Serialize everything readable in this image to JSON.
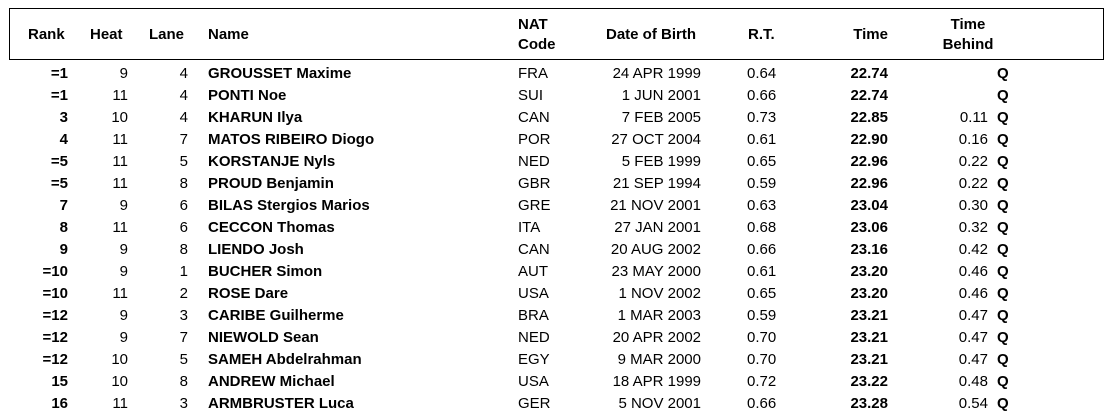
{
  "headers": {
    "rank": "Rank",
    "heat": "Heat",
    "lane": "Lane",
    "name": "Name",
    "nat_line1": "NAT",
    "nat_line2": "Code",
    "dob": "Date of Birth",
    "rt": "R.T.",
    "time": "Time",
    "behind_line1": "Time",
    "behind_line2": "Behind"
  },
  "rows": [
    {
      "rank": "=1",
      "heat": "9",
      "lane": "4",
      "name": "GROUSSET Maxime",
      "nat": "FRA",
      "dob": "24 APR 1999",
      "rt": "0.64",
      "time": "22.74",
      "behind": "",
      "q": "Q"
    },
    {
      "rank": "=1",
      "heat": "11",
      "lane": "4",
      "name": "PONTI Noe",
      "nat": "SUI",
      "dob": "1 JUN 2001",
      "rt": "0.66",
      "time": "22.74",
      "behind": "",
      "q": "Q"
    },
    {
      "rank": "3",
      "heat": "10",
      "lane": "4",
      "name": "KHARUN Ilya",
      "nat": "CAN",
      "dob": "7 FEB 2005",
      "rt": "0.73",
      "time": "22.85",
      "behind": "0.11",
      "q": "Q"
    },
    {
      "rank": "4",
      "heat": "11",
      "lane": "7",
      "name": "MATOS RIBEIRO Diogo",
      "nat": "POR",
      "dob": "27 OCT 2004",
      "rt": "0.61",
      "time": "22.90",
      "behind": "0.16",
      "q": "Q"
    },
    {
      "rank": "=5",
      "heat": "11",
      "lane": "5",
      "name": "KORSTANJE Nyls",
      "nat": "NED",
      "dob": "5 FEB 1999",
      "rt": "0.65",
      "time": "22.96",
      "behind": "0.22",
      "q": "Q"
    },
    {
      "rank": "=5",
      "heat": "11",
      "lane": "8",
      "name": "PROUD Benjamin",
      "nat": "GBR",
      "dob": "21 SEP 1994",
      "rt": "0.59",
      "time": "22.96",
      "behind": "0.22",
      "q": "Q"
    },
    {
      "rank": "7",
      "heat": "9",
      "lane": "6",
      "name": "BILAS Stergios Marios",
      "nat": "GRE",
      "dob": "21 NOV 2001",
      "rt": "0.63",
      "time": "23.04",
      "behind": "0.30",
      "q": "Q"
    },
    {
      "rank": "8",
      "heat": "11",
      "lane": "6",
      "name": "CECCON Thomas",
      "nat": "ITA",
      "dob": "27 JAN 2001",
      "rt": "0.68",
      "time": "23.06",
      "behind": "0.32",
      "q": "Q"
    },
    {
      "rank": "9",
      "heat": "9",
      "lane": "8",
      "name": "LIENDO Josh",
      "nat": "CAN",
      "dob": "20 AUG 2002",
      "rt": "0.66",
      "time": "23.16",
      "behind": "0.42",
      "q": "Q"
    },
    {
      "rank": "=10",
      "heat": "9",
      "lane": "1",
      "name": "BUCHER Simon",
      "nat": "AUT",
      "dob": "23 MAY 2000",
      "rt": "0.61",
      "time": "23.20",
      "behind": "0.46",
      "q": "Q"
    },
    {
      "rank": "=10",
      "heat": "11",
      "lane": "2",
      "name": "ROSE Dare",
      "nat": "USA",
      "dob": "1 NOV 2002",
      "rt": "0.65",
      "time": "23.20",
      "behind": "0.46",
      "q": "Q"
    },
    {
      "rank": "=12",
      "heat": "9",
      "lane": "3",
      "name": "CARIBE Guilherme",
      "nat": "BRA",
      "dob": "1 MAR 2003",
      "rt": "0.59",
      "time": "23.21",
      "behind": "0.47",
      "q": "Q"
    },
    {
      "rank": "=12",
      "heat": "9",
      "lane": "7",
      "name": "NIEWOLD Sean",
      "nat": "NED",
      "dob": "20 APR 2002",
      "rt": "0.70",
      "time": "23.21",
      "behind": "0.47",
      "q": "Q"
    },
    {
      "rank": "=12",
      "heat": "10",
      "lane": "5",
      "name": "SAMEH Abdelrahman",
      "nat": "EGY",
      "dob": "9 MAR 2000",
      "rt": "0.70",
      "time": "23.21",
      "behind": "0.47",
      "q": "Q"
    },
    {
      "rank": "15",
      "heat": "10",
      "lane": "8",
      "name": "ANDREW Michael",
      "nat": "USA",
      "dob": "18 APR 1999",
      "rt": "0.72",
      "time": "23.22",
      "behind": "0.48",
      "q": "Q"
    },
    {
      "rank": "16",
      "heat": "11",
      "lane": "3",
      "name": "ARMBRUSTER Luca",
      "nat": "GER",
      "dob": "5 NOV 2001",
      "rt": "0.66",
      "time": "23.28",
      "behind": "0.54",
      "q": "Q"
    }
  ]
}
